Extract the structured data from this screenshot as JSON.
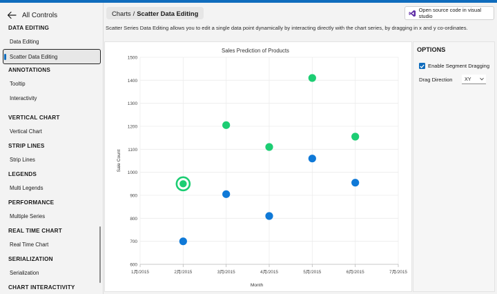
{
  "sidebar": {
    "back_label": "All Controls",
    "sections": [
      {
        "title": "DATA EDITING",
        "items": [
          "Data Editing",
          "Scatter Data Editing"
        ]
      },
      {
        "title": "ANNOTATIONS",
        "items": [
          "Tooltip",
          "Interactivity"
        ]
      },
      {
        "title": "VERTICAL CHART",
        "items": [
          "Vertical Chart"
        ]
      },
      {
        "title": "STRIP LINES",
        "items": [
          "Strip Lines"
        ]
      },
      {
        "title": "LEGENDS",
        "items": [
          "Multi Legends"
        ]
      },
      {
        "title": "PERFORMANCE",
        "items": [
          "Multiple Series"
        ]
      },
      {
        "title": "REAL TIME CHART",
        "items": [
          "Real Time Chart"
        ]
      },
      {
        "title": "SERIALIZATION",
        "items": [
          "Serialization"
        ]
      },
      {
        "title": "CHART INTERACTIVITY",
        "items": []
      }
    ],
    "selected_item": "Scatter Data Editing"
  },
  "header": {
    "breadcrumb_root": "Charts",
    "breadcrumb_separator": "/",
    "breadcrumb_current": "Scatter Data Editing",
    "source_button_label": "Open source code in visual studio"
  },
  "description": "Scatter Series Data Editing allows you to edit a single data point dynamically by interacting directly with the chart series, by dragging in x and y co-ordinates.",
  "options": {
    "title": "OPTIONS",
    "segment_dragging_label": "Enable Segment Dragging",
    "segment_dragging_checked": true,
    "drag_direction_label": "Drag Direction",
    "drag_direction_value": "XY"
  },
  "colors": {
    "accent": "#0f6cbd",
    "series_blue": "#0f79d7",
    "series_green": "#1ccd73"
  },
  "chart_data": {
    "type": "scatter",
    "title": "Sales Prediction of Products",
    "xlabel": "Month",
    "ylabel": "Sale Count",
    "x_ticks": [
      "1月/2015",
      "2月/2015",
      "3月/2015",
      "4月/2015",
      "5月/2015",
      "6月/2015",
      "7月/2015"
    ],
    "y_ticks": [
      600,
      700,
      800,
      900,
      1000,
      1100,
      1200,
      1300,
      1400,
      1500
    ],
    "ylim": [
      600,
      1500
    ],
    "grid": true,
    "series": [
      {
        "color": "#0f79d7",
        "points": [
          [
            "2月/2015",
            700
          ],
          [
            "3月/2015",
            905
          ],
          [
            "4月/2015",
            810
          ],
          [
            "5月/2015",
            1060
          ],
          [
            "6月/2015",
            955
          ]
        ]
      },
      {
        "color": "#1ccd73",
        "points": [
          [
            "2月/2015",
            950
          ],
          [
            "3月/2015",
            1205
          ],
          [
            "4月/2015",
            1110
          ],
          [
            "5月/2015",
            1410
          ],
          [
            "6月/2015",
            1155
          ]
        ]
      }
    ],
    "selected_point": {
      "series": 1,
      "index": 0
    }
  }
}
